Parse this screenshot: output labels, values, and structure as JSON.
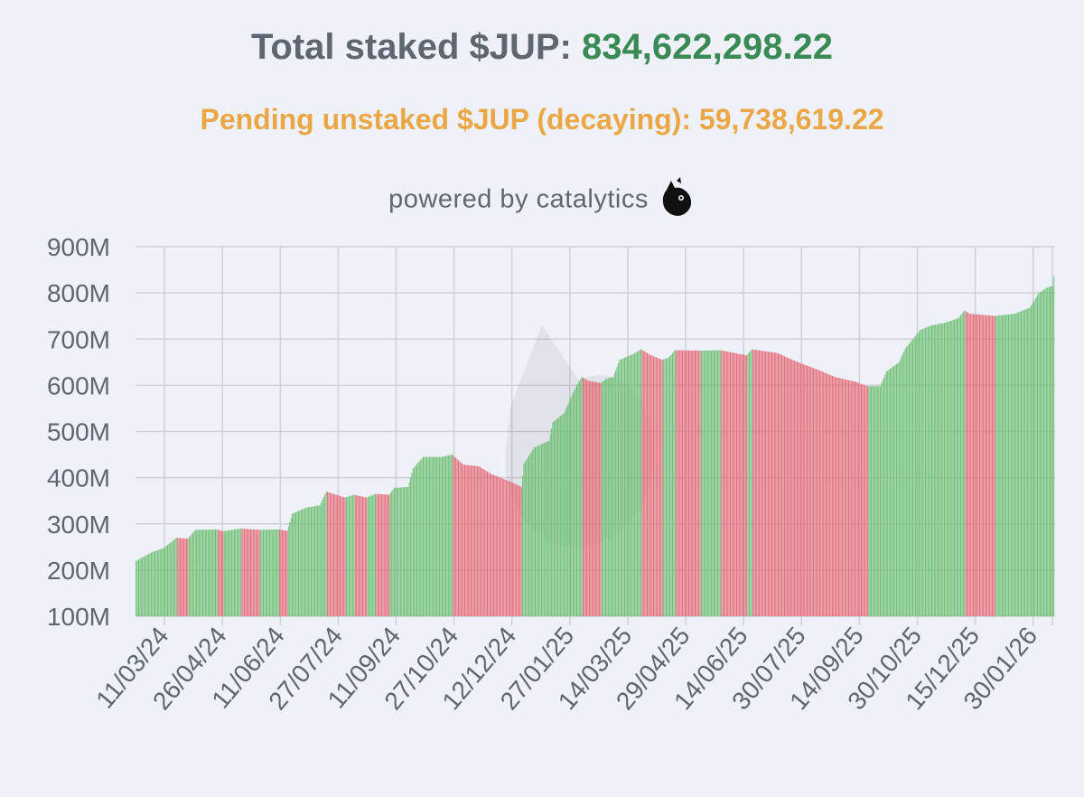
{
  "header": {
    "total_label": "Total staked $JUP:",
    "total_value": "834,622,298.22",
    "pending_text": "Pending unstaked $JUP (decaying): 59,738,619.22",
    "powered_text": "powered by catalytics",
    "logo_icon": "cat-head-icon"
  },
  "colors": {
    "up": "#6cbf72",
    "down": "#e56a78",
    "total_value": "#3a8a55",
    "pending": "#eba646",
    "text": "#5f6670",
    "grid": "#cfcfd6"
  },
  "chart_data": {
    "type": "bar",
    "title": "",
    "xlabel": "",
    "ylabel": "",
    "ylim": [
      100000000,
      900000000
    ],
    "y_ticks": [
      "100M",
      "200M",
      "300M",
      "400M",
      "500M",
      "600M",
      "700M",
      "800M",
      "900M"
    ],
    "x_tick_labels": [
      "11/03/24",
      "26/04/24",
      "11/06/24",
      "27/07/24",
      "11/09/24",
      "27/10/24",
      "12/12/24",
      "27/01/25",
      "14/03/25",
      "29/04/25",
      "14/06/25",
      "30/07/25",
      "14/09/25",
      "30/10/25",
      "15/12/25",
      "30/01/26"
    ],
    "first_date": "17/02/24",
    "last_date": "15/02/26",
    "grid": true,
    "legend": "none",
    "bar_color_rule": "green when the value rises vs. the previous day, red when it falls",
    "keypoints": [
      [
        "17/02/24",
        220
      ],
      [
        "29/02/24",
        238
      ],
      [
        "10/03/24",
        248
      ],
      [
        "20/03/24",
        270
      ],
      [
        "29/03/24",
        268
      ],
      [
        "04/04/24",
        287
      ],
      [
        "21/04/24",
        288
      ],
      [
        "26/04/24",
        284
      ],
      [
        "10/05/24",
        290
      ],
      [
        "25/05/24",
        287
      ],
      [
        "09/06/24",
        288
      ],
      [
        "16/06/24",
        285
      ],
      [
        "20/06/24",
        322
      ],
      [
        "01/07/24",
        335
      ],
      [
        "12/07/24",
        340
      ],
      [
        "17/07/24",
        370
      ],
      [
        "01/08/24",
        357
      ],
      [
        "08/08/24",
        363
      ],
      [
        "18/08/24",
        357
      ],
      [
        "25/08/24",
        365
      ],
      [
        "05/09/24",
        363
      ],
      [
        "09/09/24",
        378
      ],
      [
        "20/09/24",
        380
      ],
      [
        "24/09/24",
        420
      ],
      [
        "02/10/24",
        445
      ],
      [
        "17/10/24",
        445
      ],
      [
        "25/10/24",
        450
      ],
      [
        "03/11/24",
        428
      ],
      [
        "15/11/24",
        425
      ],
      [
        "25/11/24",
        408
      ],
      [
        "10/12/24",
        392
      ],
      [
        "19/12/24",
        380
      ],
      [
        "21/12/24",
        430
      ],
      [
        "29/12/24",
        465
      ],
      [
        "10/01/25",
        480
      ],
      [
        "13/01/25",
        520
      ],
      [
        "22/01/25",
        540
      ],
      [
        "30/01/25",
        590
      ],
      [
        "05/02/25",
        618
      ],
      [
        "10/02/25",
        610
      ],
      [
        "20/02/25",
        605
      ],
      [
        "25/02/25",
        615
      ],
      [
        "02/03/25",
        618
      ],
      [
        "07/03/25",
        655
      ],
      [
        "18/03/25",
        668
      ],
      [
        "24/03/25",
        678
      ],
      [
        "01/04/25",
        665
      ],
      [
        "10/04/25",
        655
      ],
      [
        "15/04/25",
        660
      ],
      [
        "20/04/25",
        676
      ],
      [
        "10/05/25",
        675
      ],
      [
        "26/05/25",
        676
      ],
      [
        "10/06/25",
        668
      ],
      [
        "16/06/25",
        665
      ],
      [
        "20/06/25",
        678
      ],
      [
        "10/07/25",
        670
      ],
      [
        "25/07/25",
        652
      ],
      [
        "15/08/25",
        630
      ],
      [
        "25/08/25",
        618
      ],
      [
        "10/09/25",
        608
      ],
      [
        "20/09/25",
        598
      ],
      [
        "30/09/25",
        598
      ],
      [
        "05/10/25",
        630
      ],
      [
        "15/10/25",
        650
      ],
      [
        "20/10/25",
        680
      ],
      [
        "01/11/25",
        720
      ],
      [
        "10/11/25",
        730
      ],
      [
        "20/11/25",
        735
      ],
      [
        "01/12/25",
        745
      ],
      [
        "06/12/25",
        762
      ],
      [
        "10/12/25",
        755
      ],
      [
        "30/12/25",
        750
      ],
      [
        "15/01/26",
        755
      ],
      [
        "27/01/26",
        768
      ],
      [
        "03/02/26",
        800
      ],
      [
        "10/02/26",
        812
      ],
      [
        "14/02/26",
        815
      ],
      [
        "15/02/26",
        835
      ]
    ],
    "keypoint_units": "millions of $JUP"
  }
}
